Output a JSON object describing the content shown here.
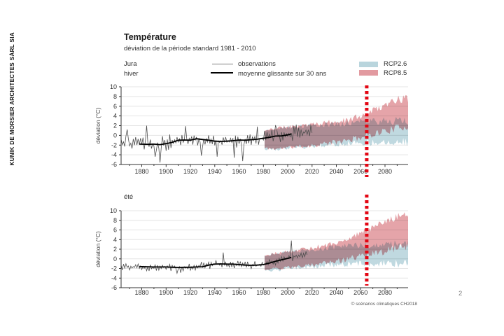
{
  "sidebar": {
    "brand": "KUNIK DE MORSIER ARCHITECTES SÀRL SIA"
  },
  "header": {
    "title": "Température",
    "subtitle": "déviation de la période standard 1981 - 2010",
    "region": "Jura",
    "season_top": "hiver",
    "season_bottom": "été"
  },
  "legend": {
    "observations": "observations",
    "running_mean": "moyenne glissante sur 30 ans",
    "rcp26": "RCP2.6",
    "rcp85": "RCP8.5"
  },
  "colors": {
    "rcp26": "#b9d5dd",
    "rcp85": "#e29aa0",
    "marker": "#e30613",
    "observations": "#4d4d4d",
    "running_mean": "#000000",
    "grid": "#e4e4e4",
    "axis": "#333333"
  },
  "footer": {
    "credit": "© scénarios climatiques CH2018",
    "page_number": "2"
  },
  "chart_data": [
    {
      "id": "hiver",
      "type": "area",
      "title": "hiver",
      "region": "Jura",
      "ylabel": "déviation (°C)",
      "ylim": [
        -6,
        10
      ],
      "yticks": [
        10,
        8,
        6,
        4,
        2,
        0,
        -2,
        -4,
        -6
      ],
      "xlim": [
        1863,
        2099
      ],
      "xticks_major": [
        1880,
        1900,
        1920,
        1940,
        1960,
        1980,
        2000,
        2020,
        2040,
        2060,
        2080
      ],
      "xticks_minor": [
        1870,
        1890,
        1910,
        1930,
        1950,
        1970,
        1990,
        2010,
        2030,
        2050,
        2070,
        2090
      ],
      "marker_year": 2065,
      "bands_start": 1981,
      "observations": {
        "end": 2020,
        "sigma": 1.5,
        "clamp": [
          -5.8,
          2.4
        ],
        "trend": [
          [
            1863,
            -1.3
          ],
          [
            1870,
            -1.6
          ],
          [
            1880,
            -1.8
          ],
          [
            1890,
            -1.9
          ],
          [
            1900,
            -1.7
          ],
          [
            1910,
            -1.1
          ],
          [
            1920,
            -1.0
          ],
          [
            1930,
            -0.9
          ],
          [
            1940,
            -1.2
          ],
          [
            1950,
            -1.1
          ],
          [
            1960,
            -1.0
          ],
          [
            1970,
            -0.8
          ],
          [
            1980,
            -0.6
          ],
          [
            1990,
            -0.2
          ],
          [
            2000,
            0.2
          ],
          [
            2010,
            0.5
          ],
          [
            2020,
            0.8
          ]
        ],
        "spikes": [
          [
            1868,
            1.2
          ],
          [
            1884,
            2.0
          ],
          [
            1891,
            -4.4
          ],
          [
            1895,
            -5.6
          ],
          [
            1916,
            1.9
          ],
          [
            1929,
            -4.2
          ],
          [
            1942,
            -4.4
          ],
          [
            1956,
            -4.6
          ],
          [
            1963,
            -5.3
          ],
          [
            1975,
            1.8
          ],
          [
            1990,
            2.1
          ],
          [
            2007,
            2.2
          ]
        ]
      },
      "running_mean": [
        [
          1878,
          -1.8
        ],
        [
          1885,
          -1.85
        ],
        [
          1890,
          -1.8
        ],
        [
          1895,
          -1.9
        ],
        [
          1900,
          -1.7
        ],
        [
          1905,
          -1.45
        ],
        [
          1910,
          -1.0
        ],
        [
          1915,
          -0.95
        ],
        [
          1920,
          -1.0
        ],
        [
          1925,
          -0.7
        ],
        [
          1930,
          -0.85
        ],
        [
          1935,
          -1.0
        ],
        [
          1940,
          -1.2
        ],
        [
          1945,
          -1.25
        ],
        [
          1950,
          -1.2
        ],
        [
          1955,
          -1.1
        ],
        [
          1960,
          -0.95
        ],
        [
          1965,
          -1.0
        ],
        [
          1970,
          -0.9
        ],
        [
          1975,
          -0.8
        ],
        [
          1980,
          -0.6
        ],
        [
          1985,
          -0.4
        ],
        [
          1990,
          -0.15
        ],
        [
          1995,
          -0.1
        ],
        [
          2000,
          0.1
        ],
        [
          2003,
          0.3
        ]
      ],
      "bands": {
        "rcp85": [
          [
            1981,
            -2.6,
            0.9
          ],
          [
            1990,
            -2.8,
            1.5
          ],
          [
            2000,
            -2.5,
            1.8
          ],
          [
            2010,
            -2.3,
            2.0
          ],
          [
            2020,
            -2.1,
            2.2
          ],
          [
            2030,
            -1.7,
            2.5
          ],
          [
            2040,
            -1.4,
            2.8
          ],
          [
            2050,
            -1.0,
            3.2
          ],
          [
            2060,
            -0.4,
            4.0
          ],
          [
            2070,
            0.3,
            5.2
          ],
          [
            2080,
            0.9,
            6.2
          ],
          [
            2090,
            1.5,
            7.3
          ],
          [
            2099,
            1.9,
            7.6
          ]
        ],
        "rcp26": [
          [
            1981,
            -2.8,
            0.9
          ],
          [
            1990,
            -2.9,
            1.3
          ],
          [
            2000,
            -2.6,
            1.6
          ],
          [
            2010,
            -2.4,
            1.8
          ],
          [
            2020,
            -2.2,
            2.0
          ],
          [
            2030,
            -2.0,
            2.2
          ],
          [
            2040,
            -1.8,
            2.4
          ],
          [
            2050,
            -1.6,
            2.6
          ],
          [
            2060,
            -1.5,
            2.8
          ],
          [
            2070,
            -1.4,
            2.9
          ],
          [
            2080,
            -1.3,
            3.0
          ],
          [
            2090,
            -1.3,
            3.0
          ],
          [
            2099,
            -1.3,
            3.0
          ]
        ]
      }
    },
    {
      "id": "ete",
      "type": "area",
      "title": "été",
      "region": "Jura",
      "ylabel": "déviation (°C)",
      "ylim": [
        -6,
        10
      ],
      "yticks": [
        10,
        8,
        6,
        4,
        2,
        0,
        -2,
        -4,
        -6
      ],
      "xlim": [
        1863,
        2099
      ],
      "xticks_major": [
        1880,
        1900,
        1920,
        1940,
        1960,
        1980,
        2000,
        2020,
        2040,
        2060,
        2080
      ],
      "xticks_minor": [
        1870,
        1890,
        1910,
        1930,
        1950,
        1970,
        1990,
        2010,
        2030,
        2050,
        2070,
        2090
      ],
      "marker_year": 2065,
      "bands_start": 1981,
      "observations": {
        "end": 2016,
        "sigma": 0.85,
        "clamp": [
          -3.3,
          1.6
        ],
        "trend": [
          [
            1863,
            -1.5
          ],
          [
            1880,
            -1.7
          ],
          [
            1900,
            -1.8
          ],
          [
            1920,
            -1.8
          ],
          [
            1930,
            -1.5
          ],
          [
            1940,
            -1.1
          ],
          [
            1950,
            -1.1
          ],
          [
            1960,
            -1.3
          ],
          [
            1970,
            -1.4
          ],
          [
            1980,
            -1.1
          ],
          [
            1990,
            -0.5
          ],
          [
            2000,
            0.2
          ],
          [
            2010,
            0.7
          ],
          [
            2016,
            1.0
          ]
        ],
        "spikes": [
          [
            1909,
            -3.0
          ],
          [
            1912,
            -2.9
          ],
          [
            1947,
            1.3
          ],
          [
            2003,
            3.8
          ]
        ]
      },
      "running_mean": [
        [
          1878,
          -1.6
        ],
        [
          1885,
          -1.65
        ],
        [
          1890,
          -1.7
        ],
        [
          1895,
          -1.7
        ],
        [
          1900,
          -1.7
        ],
        [
          1905,
          -1.75
        ],
        [
          1910,
          -1.8
        ],
        [
          1915,
          -1.75
        ],
        [
          1920,
          -1.75
        ],
        [
          1925,
          -1.7
        ],
        [
          1930,
          -1.65
        ],
        [
          1935,
          -1.3
        ],
        [
          1940,
          -1.1
        ],
        [
          1945,
          -1.05
        ],
        [
          1950,
          -1.1
        ],
        [
          1955,
          -1.1
        ],
        [
          1960,
          -1.2
        ],
        [
          1965,
          -1.3
        ],
        [
          1970,
          -1.35
        ],
        [
          1975,
          -1.3
        ],
        [
          1980,
          -1.2
        ],
        [
          1985,
          -0.9
        ],
        [
          1990,
          -0.5
        ],
        [
          1995,
          -0.2
        ],
        [
          2000,
          0.1
        ],
        [
          2003,
          0.3
        ]
      ],
      "bands": {
        "rcp85": [
          [
            1981,
            -2.2,
            0.8
          ],
          [
            1990,
            -2.1,
            1.2
          ],
          [
            2000,
            -1.8,
            1.6
          ],
          [
            2010,
            -1.5,
            1.9
          ],
          [
            2020,
            -1.3,
            2.2
          ],
          [
            2030,
            -0.9,
            2.7
          ],
          [
            2040,
            -0.5,
            3.3
          ],
          [
            2050,
            0.0,
            4.2
          ],
          [
            2060,
            0.5,
            5.3
          ],
          [
            2070,
            1.0,
            6.4
          ],
          [
            2080,
            1.6,
            7.6
          ],
          [
            2090,
            2.2,
            8.8
          ],
          [
            2099,
            2.6,
            9.2
          ]
        ],
        "rcp26": [
          [
            1981,
            -2.4,
            0.8
          ],
          [
            1990,
            -2.3,
            1.0
          ],
          [
            2000,
            -2.0,
            1.4
          ],
          [
            2010,
            -1.8,
            1.6
          ],
          [
            2020,
            -1.6,
            1.9
          ],
          [
            2030,
            -1.4,
            2.2
          ],
          [
            2040,
            -1.2,
            2.4
          ],
          [
            2050,
            -1.1,
            2.6
          ],
          [
            2060,
            -1.0,
            2.8
          ],
          [
            2070,
            -1.0,
            2.9
          ],
          [
            2080,
            -1.0,
            3.0
          ],
          [
            2090,
            -1.0,
            3.0
          ],
          [
            2099,
            -1.0,
            3.0
          ]
        ]
      }
    }
  ]
}
